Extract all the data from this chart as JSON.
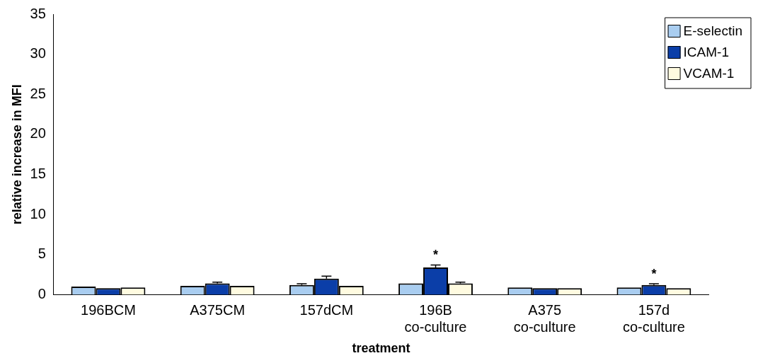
{
  "chart_data": {
    "type": "bar",
    "xlabel": "treatment",
    "ylabel": "relative increase in MFI",
    "categories": [
      "196BCM",
      "A375CM",
      "157dCM",
      "196B co-culture",
      "A375 co-culture",
      "157d co-culture"
    ],
    "series": [
      {
        "name": "E-selectin",
        "color": "#a9cdf0",
        "values": [
          1.0,
          1.1,
          1.2,
          1.4,
          0.9,
          0.9
        ],
        "errors": [
          null,
          null,
          0.15,
          null,
          null,
          null
        ]
      },
      {
        "name": "ICAM-1",
        "color": "#0b3ea8",
        "values": [
          0.8,
          1.4,
          2.0,
          3.4,
          0.8,
          1.2
        ],
        "errors": [
          null,
          0.15,
          0.3,
          0.3,
          null,
          0.15
        ]
      },
      {
        "name": "VCAM-1",
        "color": "#fffbe0",
        "values": [
          0.9,
          1.1,
          1.1,
          1.4,
          0.8,
          0.8
        ],
        "errors": [
          null,
          null,
          null,
          0.15,
          null,
          null
        ]
      }
    ],
    "ylim": [
      0,
      35
    ],
    "yticks": [
      0,
      5,
      10,
      15,
      20,
      25,
      30,
      35
    ],
    "grid": false,
    "legend": "top right",
    "annotations": [
      {
        "text": "*",
        "x": "196B co-culture",
        "y": 3.7
      },
      {
        "text": "*",
        "x": "157d co-culture",
        "y": 1.35
      }
    ]
  }
}
